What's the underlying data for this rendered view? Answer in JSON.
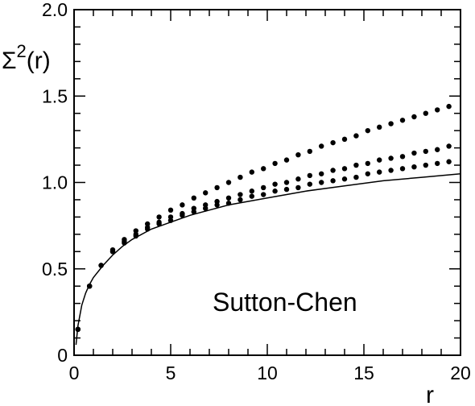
{
  "chart_data": {
    "type": "scatter",
    "title": "",
    "xlabel": "r",
    "ylabel_main": "Σ",
    "ylabel_sup": "2",
    "ylabel_tail": "(r)",
    "xlim": [
      0,
      20
    ],
    "ylim": [
      0,
      2.0
    ],
    "x_tick_labels": [
      "0",
      "5",
      "10",
      "15",
      "20"
    ],
    "x_tick_values": [
      0,
      5,
      10,
      15,
      20
    ],
    "y_tick_labels": [
      "0",
      "0.5",
      "1.0",
      "1.5",
      "2.0"
    ],
    "y_tick_values": [
      0,
      0.5,
      1.0,
      1.5,
      2.0
    ],
    "annotation": "Sutton-Chen",
    "grid": false,
    "curve": {
      "x": [
        0.1,
        0.2,
        0.4,
        0.6,
        0.8,
        1.0,
        1.5,
        2.0,
        2.5,
        3.0,
        4.0,
        5.0,
        6.0,
        7.0,
        8.0,
        10.0,
        12.0,
        14.0,
        16.0,
        18.0,
        20.0
      ],
      "y": [
        0.06,
        0.17,
        0.29,
        0.36,
        0.41,
        0.45,
        0.52,
        0.58,
        0.63,
        0.67,
        0.73,
        0.77,
        0.81,
        0.84,
        0.87,
        0.91,
        0.95,
        0.98,
        1.01,
        1.03,
        1.05
      ]
    },
    "series": [
      {
        "x": [
          0.2,
          0.8,
          1.4,
          2.0,
          2.6,
          3.2,
          3.8,
          4.4,
          5.0,
          5.6,
          6.2,
          6.8,
          7.4,
          8.0,
          8.6,
          9.2,
          9.8,
          10.4,
          11.0,
          11.6,
          12.2,
          12.8,
          13.4,
          14.0,
          14.6,
          15.2,
          15.8,
          16.4,
          17.0,
          17.6,
          18.2,
          18.8,
          19.4
        ],
        "y": [
          0.15,
          0.4,
          0.52,
          0.61,
          0.67,
          0.72,
          0.76,
          0.8,
          0.84,
          0.87,
          0.91,
          0.94,
          0.97,
          1.0,
          1.03,
          1.06,
          1.08,
          1.11,
          1.13,
          1.16,
          1.18,
          1.21,
          1.23,
          1.25,
          1.27,
          1.3,
          1.32,
          1.34,
          1.36,
          1.38,
          1.4,
          1.42,
          1.44
        ]
      },
      {
        "x": [
          0.2,
          0.8,
          1.4,
          2.0,
          2.6,
          3.2,
          3.8,
          4.4,
          5.0,
          5.6,
          6.2,
          6.8,
          7.4,
          8.0,
          8.6,
          9.2,
          9.8,
          10.4,
          11.0,
          11.6,
          12.2,
          12.8,
          13.4,
          14.0,
          14.6,
          15.2,
          15.8,
          16.4,
          17.0,
          17.6,
          18.2,
          18.8,
          19.4
        ],
        "y": [
          0.15,
          0.4,
          0.52,
          0.6,
          0.66,
          0.7,
          0.74,
          0.77,
          0.8,
          0.82,
          0.85,
          0.87,
          0.89,
          0.91,
          0.93,
          0.95,
          0.97,
          0.99,
          1.0,
          1.02,
          1.04,
          1.05,
          1.07,
          1.08,
          1.1,
          1.11,
          1.13,
          1.14,
          1.15,
          1.17,
          1.18,
          1.19,
          1.21
        ]
      },
      {
        "x": [
          0.2,
          0.8,
          1.4,
          2.0,
          2.6,
          3.2,
          3.8,
          4.4,
          5.0,
          5.6,
          6.2,
          6.8,
          7.4,
          8.0,
          8.6,
          9.2,
          9.8,
          10.4,
          11.0,
          11.6,
          12.2,
          12.8,
          13.4,
          14.0,
          14.6,
          15.2,
          15.8,
          16.4,
          17.0,
          17.6,
          18.2,
          18.8,
          19.4
        ],
        "y": [
          0.15,
          0.4,
          0.52,
          0.6,
          0.65,
          0.69,
          0.73,
          0.76,
          0.78,
          0.81,
          0.83,
          0.85,
          0.87,
          0.88,
          0.9,
          0.92,
          0.93,
          0.95,
          0.96,
          0.97,
          0.99,
          1.0,
          1.01,
          1.02,
          1.03,
          1.05,
          1.06,
          1.07,
          1.08,
          1.09,
          1.1,
          1.11,
          1.12
        ]
      }
    ]
  }
}
